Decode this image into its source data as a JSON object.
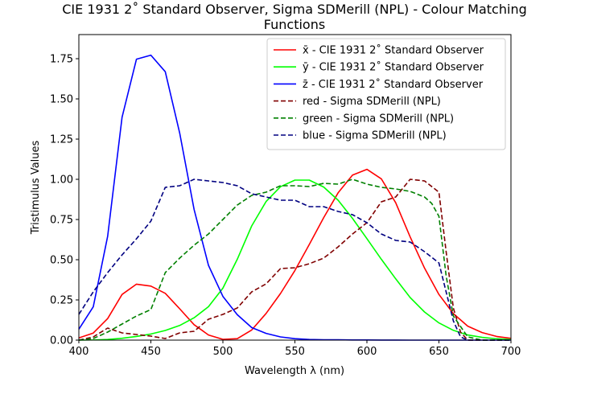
{
  "chart_data": {
    "type": "line",
    "title_lines": [
      "CIE 1931 2˚ Standard Observer, Sigma SDMerill (NPL) - Colour Matching",
      "Functions"
    ],
    "xlabel": "Wavelength λ (nm)",
    "ylabel": "Tristimulus Values",
    "xlim": [
      400,
      700
    ],
    "ylim": [
      0,
      1.9
    ],
    "xticks": [
      "400",
      "450",
      "500",
      "550",
      "600",
      "650",
      "700"
    ],
    "yticks": [
      "0.00",
      "0.25",
      "0.50",
      "0.75",
      "1.00",
      "1.25",
      "1.50",
      "1.75"
    ],
    "legend_position": "upper right",
    "series": [
      {
        "name": "x̄ - CIE 1931 2˚ Standard Observer",
        "color": "#ff0000",
        "style": "solid",
        "x": [
          400,
          410,
          420,
          430,
          440,
          450,
          460,
          470,
          480,
          490,
          500,
          510,
          520,
          530,
          540,
          550,
          560,
          570,
          580,
          590,
          600,
          610,
          620,
          630,
          640,
          650,
          660,
          670,
          680,
          690,
          700
        ],
        "y": [
          0.014,
          0.044,
          0.134,
          0.284,
          0.348,
          0.336,
          0.291,
          0.195,
          0.096,
          0.032,
          0.005,
          0.009,
          0.063,
          0.166,
          0.29,
          0.433,
          0.595,
          0.762,
          0.916,
          1.026,
          1.062,
          1.003,
          0.854,
          0.642,
          0.448,
          0.284,
          0.165,
          0.087,
          0.047,
          0.023,
          0.011
        ]
      },
      {
        "name": "ȳ - CIE 1931 2˚ Standard Observer",
        "color": "#00ff00",
        "style": "solid",
        "x": [
          400,
          410,
          420,
          430,
          440,
          450,
          460,
          470,
          480,
          490,
          500,
          510,
          520,
          530,
          540,
          550,
          560,
          570,
          580,
          590,
          600,
          610,
          620,
          630,
          640,
          650,
          660,
          670,
          680,
          690,
          700
        ],
        "y": [
          0.0004,
          0.0012,
          0.004,
          0.0116,
          0.023,
          0.038,
          0.06,
          0.091,
          0.139,
          0.208,
          0.323,
          0.503,
          0.71,
          0.862,
          0.954,
          0.995,
          0.995,
          0.952,
          0.87,
          0.757,
          0.631,
          0.503,
          0.381,
          0.265,
          0.175,
          0.107,
          0.061,
          0.032,
          0.017,
          0.0082,
          0.0041
        ]
      },
      {
        "name": "z̄ - CIE 1931 2˚ Standard Observer",
        "color": "#0000ff",
        "style": "solid",
        "x": [
          400,
          410,
          420,
          430,
          440,
          450,
          460,
          470,
          480,
          490,
          500,
          510,
          520,
          530,
          540,
          550,
          560,
          570,
          580,
          590,
          600,
          610,
          620,
          630,
          640,
          650,
          660,
          670,
          680,
          690,
          700
        ],
        "y": [
          0.068,
          0.207,
          0.646,
          1.386,
          1.747,
          1.772,
          1.669,
          1.288,
          0.813,
          0.465,
          0.272,
          0.158,
          0.078,
          0.042,
          0.02,
          0.009,
          0.004,
          0.002,
          0.002,
          0.001,
          0.0008,
          0.0003,
          0.0002,
          0,
          0,
          0,
          0,
          0,
          0,
          0,
          0
        ]
      },
      {
        "name": "red - Sigma SDMerill (NPL)",
        "color": "#800000",
        "style": "dashed",
        "x": [
          400,
          410,
          420,
          430,
          440,
          450,
          460,
          470,
          480,
          490,
          500,
          510,
          520,
          530,
          540,
          550,
          560,
          570,
          580,
          590,
          600,
          610,
          620,
          630,
          640,
          650,
          655,
          660,
          665,
          670,
          680,
          690,
          700
        ],
        "y": [
          0,
          0.02,
          0.075,
          0.045,
          0.035,
          0.025,
          0.01,
          0.045,
          0.055,
          0.13,
          0.16,
          0.2,
          0.3,
          0.35,
          0.445,
          0.45,
          0.475,
          0.51,
          0.58,
          0.66,
          0.73,
          0.86,
          0.89,
          1.0,
          0.99,
          0.92,
          0.55,
          0.2,
          0.05,
          0,
          0,
          0,
          0
        ]
      },
      {
        "name": "green - Sigma SDMerill (NPL)",
        "color": "#008000",
        "style": "dashed",
        "x": [
          400,
          410,
          420,
          430,
          440,
          450,
          460,
          470,
          480,
          490,
          500,
          510,
          520,
          530,
          540,
          550,
          560,
          570,
          580,
          590,
          600,
          610,
          620,
          630,
          640,
          645,
          650,
          655,
          660,
          670,
          680,
          690,
          700
        ],
        "y": [
          0,
          0.01,
          0.05,
          0.1,
          0.15,
          0.19,
          0.42,
          0.51,
          0.59,
          0.66,
          0.75,
          0.84,
          0.9,
          0.92,
          0.96,
          0.96,
          0.955,
          0.975,
          0.97,
          1.0,
          0.97,
          0.95,
          0.94,
          0.925,
          0.89,
          0.85,
          0.77,
          0.4,
          0.15,
          0.02,
          0,
          0,
          0
        ]
      },
      {
        "name": "blue - Sigma SDMerill (NPL)",
        "color": "#000080",
        "style": "dashed",
        "x": [
          400,
          410,
          420,
          430,
          440,
          450,
          460,
          470,
          480,
          490,
          500,
          510,
          520,
          530,
          540,
          550,
          560,
          570,
          580,
          590,
          600,
          610,
          620,
          630,
          640,
          650,
          655,
          660,
          665,
          670,
          680,
          690,
          700
        ],
        "y": [
          0.16,
          0.3,
          0.42,
          0.53,
          0.63,
          0.74,
          0.95,
          0.96,
          1.0,
          0.99,
          0.98,
          0.96,
          0.91,
          0.89,
          0.87,
          0.87,
          0.83,
          0.83,
          0.8,
          0.78,
          0.73,
          0.66,
          0.62,
          0.61,
          0.55,
          0.48,
          0.3,
          0.12,
          0.02,
          0,
          0,
          0,
          0
        ]
      }
    ]
  }
}
